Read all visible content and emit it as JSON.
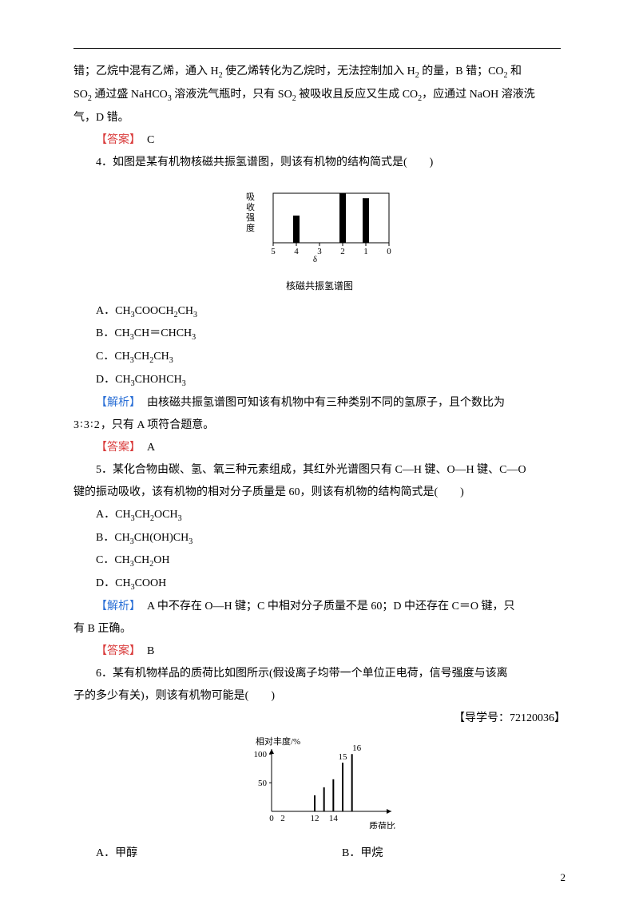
{
  "intro": {
    "line1_pre": "错；乙烷中混有乙烯，通入 H",
    "line1_mid1": " 使乙烯转化为乙烷时，无法控制加入 H",
    "line1_mid2": " 的量，B 错；CO",
    "line1_mid3": " 和",
    "line2_pre": "SO",
    "line2_mid1": " 通过盛 NaHCO",
    "line2_mid2": " 溶液洗气瓶时，只有 SO",
    "line2_mid3": " 被吸收且反应又生成 CO",
    "line2_mid4": "，应通过 NaOH 溶液洗",
    "line3": "气，D 错。",
    "answer_label": "【答案】",
    "answer": "C"
  },
  "q4": {
    "stem": "4．如图是某有机物核磁共振氢谱图，则该有机物的结构简式是(　　)",
    "options": {
      "a_pre": "A．CH",
      "a_mid": "COOCH",
      "a_post": "CH",
      "b_pre": "B．CH",
      "b_mid1": "CH＝CHCH",
      "c_pre": "C．CH",
      "c_mid1": "CH",
      "c_mid2": "CH",
      "d_pre": "D．CH",
      "d_mid": "CHOHCH"
    },
    "analysis_label": "【解析】",
    "analysis_pre": "由核磁共振氢谱图可知该有机物中有三种类别不同的氢原子，且个数比为",
    "analysis_post": "，只有 A 项符合题意。",
    "ratio": "3∶3∶2",
    "answer_label": "【答案】",
    "answer": "A",
    "chart": {
      "y_label": "吸\n收\n强\n度",
      "x_ticks": [
        "5",
        "4",
        "3",
        "2",
        "1",
        "0"
      ],
      "delta": "δ",
      "caption": "核磁共振氢谱图",
      "bars": [
        {
          "x": 4,
          "h": 0.55
        },
        {
          "x": 2,
          "h": 1.0
        },
        {
          "x": 1,
          "h": 0.9
        }
      ],
      "bg": "#ffffff",
      "bar_color": "#000000",
      "axis_color": "#000000",
      "font_size": 11
    }
  },
  "q5": {
    "stem_pre": "5．某化合物由碳、氢、氧三种元素组成，其红外光谱图只有 C—H 键、O—H 键、C—O",
    "stem_post": "键的振动吸收，该有机物的相对分子质量是 60，则该有机物的结构简式是(　　)",
    "options": {
      "a_pre": "A．CH",
      "a_mid1": "CH",
      "a_mid2": "OCH",
      "b_pre": "B．CH",
      "b_mid": "CH(OH)CH",
      "c_pre": "C．CH",
      "c_mid": "CH",
      "c_post": "OH",
      "d_pre": "D．CH",
      "d_post": "COOH"
    },
    "analysis_label": "【解析】",
    "analysis": "A 中不存在 O—H 键；C 中相对分子质量不是 60；D 中还存在 C＝O 键，只",
    "analysis2": "有 B 正确。",
    "answer_label": "【答案】",
    "answer": "B"
  },
  "q6": {
    "stem_pre": "6．某有机物样品的质荷比如图所示(假设离子均带一个单位正电荷，信号强度与该离",
    "stem_post": "子的多少有关)，则该有机物可能是(　　)",
    "guide": "【导学号：72120036】",
    "options": {
      "a": "A．甲醇",
      "b": "B．甲烷"
    },
    "chart": {
      "y_label": "相对丰度/%",
      "y_ticks": [
        "100",
        "50"
      ],
      "x_label": "质荷比",
      "x_ticks_left": [
        "0",
        "2"
      ],
      "x_ticks_right": [
        "12",
        "14"
      ],
      "top_labels": {
        "at15": "15",
        "at16": "16"
      },
      "bars": [
        {
          "x": 12,
          "h": 0.28
        },
        {
          "x": 13,
          "h": 0.42
        },
        {
          "x": 14,
          "h": 0.56
        },
        {
          "x": 15,
          "h": 0.85
        },
        {
          "x": 16,
          "h": 1.0
        }
      ],
      "bg": "#ffffff",
      "bar_color": "#000000",
      "axis_color": "#000000",
      "font_size": 11
    }
  },
  "page_number": "2"
}
